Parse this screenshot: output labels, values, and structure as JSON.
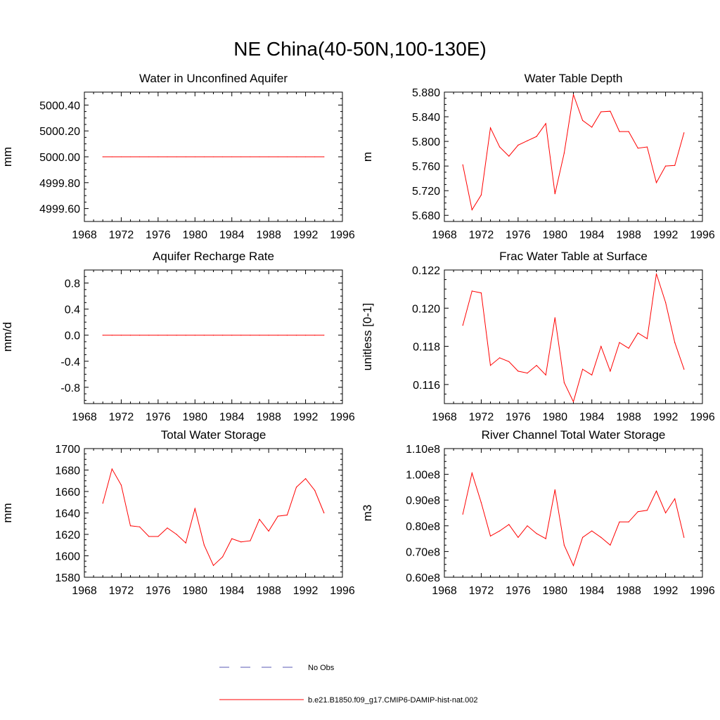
{
  "title": "NE China(40-50N,100-130E)",
  "legend": {
    "placement": "bottom",
    "entries": [
      {
        "label": "No Obs",
        "color": "#5a5ab4",
        "style": "dashed"
      },
      {
        "label": "b.e21.B1850.f09_g17.CMIP6-DAMIP-hist-nat.002",
        "color": "#ff0000",
        "style": "solid"
      }
    ]
  },
  "chart_data": [
    {
      "type": "line",
      "title": "Water in Unconfined Aquifer",
      "ylabel": "mm",
      "xlim": [
        1968,
        1996
      ],
      "ylim": [
        4999.5,
        5000.5
      ],
      "xticks": [
        1968,
        1972,
        1976,
        1980,
        1984,
        1988,
        1992,
        1996
      ],
      "yticks": [
        4999.6,
        4999.8,
        5000.0,
        5000.2,
        5000.4
      ],
      "ydecimals": 2,
      "x": [
        1970,
        1971,
        1972,
        1973,
        1974,
        1975,
        1976,
        1977,
        1978,
        1979,
        1980,
        1981,
        1982,
        1983,
        1984,
        1985,
        1986,
        1987,
        1988,
        1989,
        1990,
        1991,
        1992,
        1993,
        1994
      ],
      "series": [
        {
          "values": [
            5000,
            5000,
            5000,
            5000,
            5000,
            5000,
            5000,
            5000,
            5000,
            5000,
            5000,
            5000,
            5000,
            5000,
            5000,
            5000,
            5000,
            5000,
            5000,
            5000,
            5000,
            5000,
            5000,
            5000,
            5000
          ],
          "color": "#ff0000"
        }
      ]
    },
    {
      "type": "line",
      "title": "Water Table Depth",
      "ylabel": "m",
      "xlim": [
        1968,
        1996
      ],
      "ylim": [
        5.67,
        5.88
      ],
      "xticks": [
        1968,
        1972,
        1976,
        1980,
        1984,
        1988,
        1992,
        1996
      ],
      "yticks": [
        5.68,
        5.72,
        5.76,
        5.8,
        5.84,
        5.88
      ],
      "ydecimals": 3,
      "x": [
        1970,
        1971,
        1972,
        1973,
        1974,
        1975,
        1976,
        1977,
        1978,
        1979,
        1980,
        1981,
        1982,
        1983,
        1984,
        1985,
        1986,
        1987,
        1988,
        1989,
        1990,
        1991,
        1992,
        1993,
        1994
      ],
      "series": [
        {
          "values": [
            5.762,
            5.689,
            5.713,
            5.822,
            5.791,
            5.776,
            5.794,
            5.801,
            5.808,
            5.829,
            5.715,
            5.781,
            5.876,
            5.834,
            5.823,
            5.848,
            5.849,
            5.816,
            5.816,
            5.789,
            5.791,
            5.733,
            5.76,
            5.761,
            5.814
          ],
          "color": "#ff0000"
        }
      ]
    },
    {
      "type": "line",
      "title": "Aquifer Recharge Rate",
      "ylabel": "mm/d",
      "xlim": [
        1968,
        1996
      ],
      "ylim": [
        -1.05,
        1.0
      ],
      "xticks": [
        1968,
        1972,
        1976,
        1980,
        1984,
        1988,
        1992,
        1996
      ],
      "yticks": [
        -0.8,
        -0.4,
        0.0,
        0.4,
        0.8
      ],
      "ydecimals": 1,
      "x": [
        1970,
        1971,
        1972,
        1973,
        1974,
        1975,
        1976,
        1977,
        1978,
        1979,
        1980,
        1981,
        1982,
        1983,
        1984,
        1985,
        1986,
        1987,
        1988,
        1989,
        1990,
        1991,
        1992,
        1993,
        1994
      ],
      "series": [
        {
          "values": [
            0,
            0,
            0,
            0,
            0,
            0,
            0,
            0,
            0,
            0,
            0,
            0,
            0,
            0,
            0,
            0,
            0,
            0,
            0,
            0,
            0,
            0,
            0,
            0,
            0
          ],
          "color": "#ff0000"
        }
      ]
    },
    {
      "type": "line",
      "title": "Frac Water Table at Surface",
      "ylabel": "unitless [0-1]",
      "xlim": [
        1968,
        1996
      ],
      "ylim": [
        0.115,
        0.122
      ],
      "xticks": [
        1968,
        1972,
        1976,
        1980,
        1984,
        1988,
        1992,
        1996
      ],
      "yticks": [
        0.116,
        0.118,
        0.12,
        0.122
      ],
      "ydecimals": 3,
      "x": [
        1970,
        1971,
        1972,
        1973,
        1974,
        1975,
        1976,
        1977,
        1978,
        1979,
        1980,
        1981,
        1982,
        1983,
        1984,
        1985,
        1986,
        1987,
        1988,
        1989,
        1990,
        1991,
        1992,
        1993,
        1994
      ],
      "series": [
        {
          "values": [
            0.1191,
            0.1209,
            0.1208,
            0.117,
            0.1174,
            0.1172,
            0.1167,
            0.1166,
            0.117,
            0.1165,
            0.1195,
            0.1161,
            0.1151,
            0.1168,
            0.1165,
            0.118,
            0.1167,
            0.1182,
            0.1179,
            0.1187,
            0.1184,
            0.1218,
            0.1203,
            0.1182,
            0.1168
          ],
          "color": "#ff0000"
        }
      ]
    },
    {
      "type": "line",
      "title": "Total Water Storage",
      "ylabel": "mm",
      "xlim": [
        1968,
        1996
      ],
      "ylim": [
        1580,
        1700
      ],
      "xticks": [
        1968,
        1972,
        1976,
        1980,
        1984,
        1988,
        1992,
        1996
      ],
      "yticks": [
        1580,
        1600,
        1620,
        1640,
        1660,
        1680,
        1700
      ],
      "ydecimals": 0,
      "x": [
        1970,
        1971,
        1972,
        1973,
        1974,
        1975,
        1976,
        1977,
        1978,
        1979,
        1980,
        1981,
        1982,
        1983,
        1984,
        1985,
        1986,
        1987,
        1988,
        1989,
        1990,
        1991,
        1992,
        1993,
        1994
      ],
      "series": [
        {
          "values": [
            1649,
            1681,
            1666,
            1628,
            1627,
            1618,
            1618,
            1626,
            1620,
            1612,
            1644,
            1610,
            1591,
            1599,
            1616,
            1613,
            1614,
            1634,
            1623,
            1637,
            1638,
            1664,
            1672,
            1661,
            1640
          ],
          "color": "#ff0000"
        }
      ]
    },
    {
      "type": "line",
      "title": "River Channel Total Water Storage",
      "ylabel": "m3",
      "xlim": [
        1968,
        1996
      ],
      "ylim": [
        60000000,
        110000000
      ],
      "xticks": [
        1968,
        1972,
        1976,
        1980,
        1984,
        1988,
        1992,
        1996
      ],
      "yticks": [
        60000000,
        70000000,
        80000000,
        90000000,
        100000000,
        110000000
      ],
      "yticklabels": [
        "0.60e8",
        "0.70e8",
        "0.80e8",
        "0.90e8",
        "1.00e8",
        "1.10e8"
      ],
      "x": [
        1970,
        1971,
        1972,
        1973,
        1974,
        1975,
        1976,
        1977,
        1978,
        1979,
        1980,
        1981,
        1982,
        1983,
        1984,
        1985,
        1986,
        1987,
        1988,
        1989,
        1990,
        1991,
        1992,
        1993,
        1994
      ],
      "series": [
        {
          "values": [
            84500000,
            100500000,
            89000000,
            76000000,
            78000000,
            80500000,
            75500000,
            80000000,
            77000000,
            75000000,
            94000000,
            72500000,
            64500000,
            75500000,
            78000000,
            75500000,
            72500000,
            81500000,
            81500000,
            85500000,
            86000000,
            93500000,
            85000000,
            90500000,
            75500000
          ],
          "color": "#ff0000"
        }
      ]
    }
  ]
}
